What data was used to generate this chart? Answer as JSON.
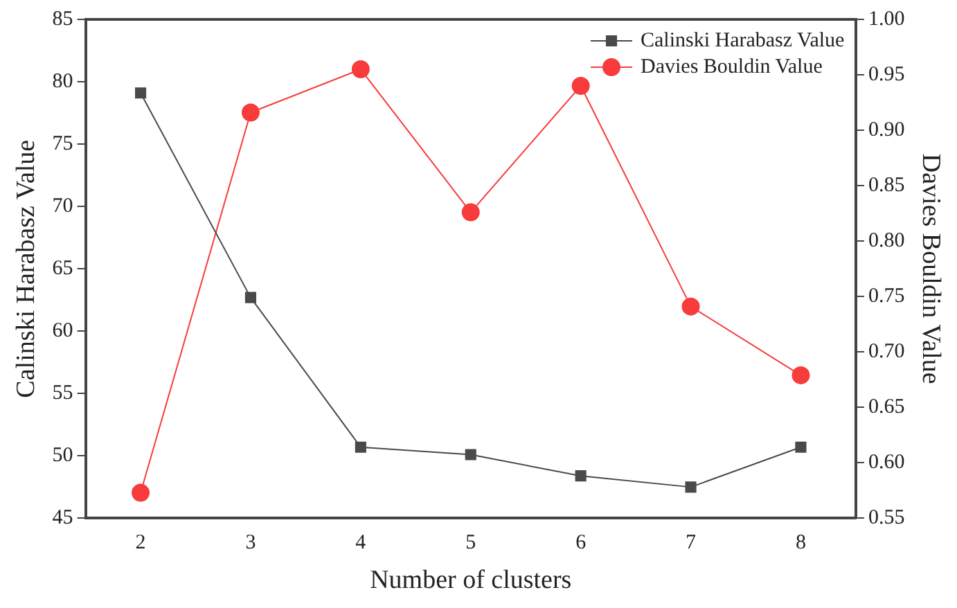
{
  "chart_data": {
    "type": "line",
    "xlabel": "Number of clusters",
    "ylabel": "Calinski Harabasz Value",
    "y2label": "Davies Bouldin Value",
    "x": [
      2,
      3,
      4,
      5,
      6,
      7,
      8
    ],
    "xlim": [
      1.5,
      8.5
    ],
    "xticks": [
      2,
      3,
      4,
      5,
      6,
      7,
      8
    ],
    "ylim": [
      45,
      85
    ],
    "yticks": [
      45,
      50,
      55,
      60,
      65,
      70,
      75,
      80,
      85
    ],
    "y2lim": [
      0.55,
      1.0
    ],
    "y2ticks": [
      {
        "value": 0.55,
        "label": "0.55"
      },
      {
        "value": 0.6,
        "label": "0.60"
      },
      {
        "value": 0.65,
        "label": "0.65"
      },
      {
        "value": 0.7,
        "label": "0.70"
      },
      {
        "value": 0.75,
        "label": "0.75"
      },
      {
        "value": 0.8,
        "label": "0.80"
      },
      {
        "value": 0.85,
        "label": "0.85"
      },
      {
        "value": 0.9,
        "label": "0.90"
      },
      {
        "value": 0.95,
        "label": "0.95"
      },
      {
        "value": 1.0,
        "label": "1.00"
      }
    ],
    "series": [
      {
        "name": "Calinski Harabasz Value",
        "color": "#4a4a4a",
        "marker": "square",
        "values": [
          79.1,
          62.7,
          50.7,
          50.1,
          48.4,
          47.5,
          50.7
        ]
      },
      {
        "name": "Davies Bouldin Value",
        "color": "#f83b3b",
        "marker": "circle",
        "axis": "y2",
        "values": [
          0.573,
          0.916,
          0.955,
          0.826,
          0.94,
          0.741,
          0.679
        ]
      }
    ],
    "grid": false,
    "legend": "top right",
    "line_style": "solid"
  }
}
